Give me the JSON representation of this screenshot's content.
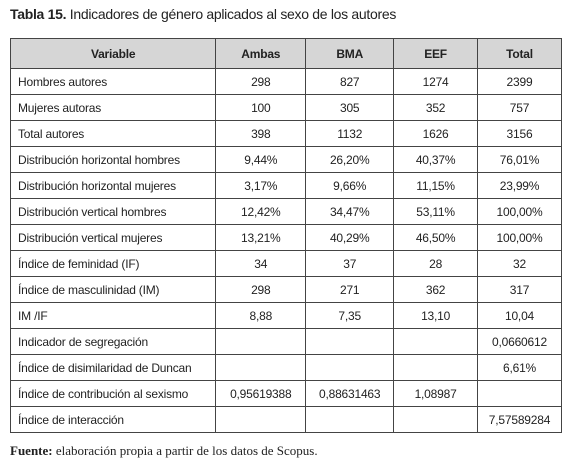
{
  "caption": {
    "label": "Tabla 15.",
    "text": "Indicadores de género aplicados al sexo de los autores"
  },
  "table": {
    "header": [
      "Variable",
      "Ambas",
      "BMA",
      "EEF",
      "Total"
    ],
    "rows": [
      [
        "Hombres autores",
        "298",
        "827",
        "1274",
        "2399"
      ],
      [
        "Mujeres autoras",
        "100",
        "305",
        "352",
        "757"
      ],
      [
        "Total autores",
        "398",
        "1132",
        "1626",
        "3156"
      ],
      [
        "Distribución horizontal hombres",
        "9,44%",
        "26,20%",
        "40,37%",
        "76,01%"
      ],
      [
        "Distribución horizontal mujeres",
        "3,17%",
        "9,66%",
        "11,15%",
        "23,99%"
      ],
      [
        "Distribución vertical hombres",
        "12,42%",
        "34,47%",
        "53,11%",
        "100,00%"
      ],
      [
        "Distribución vertical mujeres",
        "13,21%",
        "40,29%",
        "46,50%",
        "100,00%"
      ],
      [
        "Índice de feminidad (IF)",
        "34",
        "37",
        "28",
        "32"
      ],
      [
        "Índice de masculinidad (IM)",
        "298",
        "271",
        "362",
        "317"
      ],
      [
        "IM /IF",
        "8,88",
        "7,35",
        "13,10",
        "10,04"
      ],
      [
        "Indicador de segregación",
        null,
        null,
        null,
        "0,0660612"
      ],
      [
        "Índice de disimilaridad de Duncan",
        null,
        null,
        null,
        "6,61%"
      ],
      [
        "Índice de contribución al sexismo",
        "0,95619388",
        "0,88631463",
        "1,08987",
        null
      ],
      [
        "Índice de interacción",
        null,
        null,
        null,
        "7,57589284"
      ]
    ]
  },
  "footnote": {
    "label": "Fuente:",
    "text": "elaboración propia a partir de los datos de Scopus."
  }
}
